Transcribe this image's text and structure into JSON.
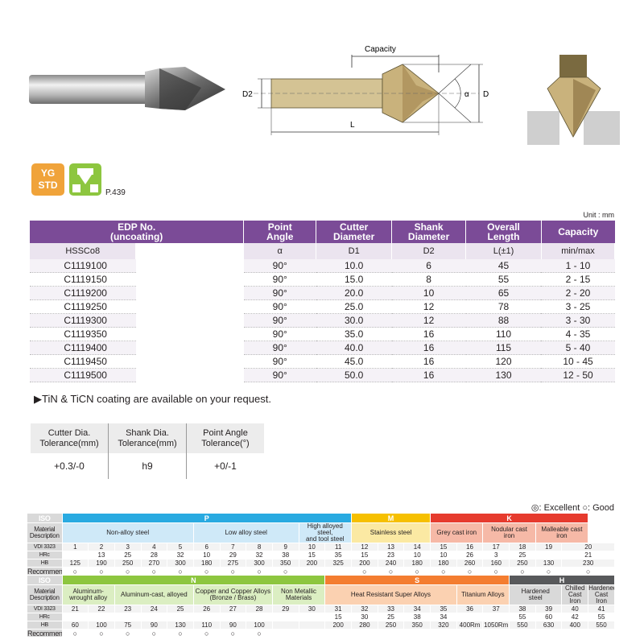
{
  "drawing": {
    "capacity_label": "Capacity",
    "d2_label": "D2",
    "alpha_label": "α",
    "d_label": "D",
    "l_label": "L"
  },
  "badges": {
    "yg_line1": "YG",
    "yg_line2": "STD",
    "page_ref": "P.439"
  },
  "unit": "Unit : mm",
  "table": {
    "headers": {
      "edp": "EDP No.\n(uncoating)",
      "angle": "Point\nAngle",
      "cutter": "Cutter\nDiameter",
      "shank": "Shank\nDiameter",
      "overall": "Overall\nLength",
      "capacity": "Capacity"
    },
    "subheaders": {
      "edp": "HSSCo8",
      "angle": "α",
      "cutter": "D1",
      "shank": "D2",
      "overall": "L(±1)",
      "capacity": "min/max"
    },
    "rows": [
      {
        "edp": "C1119100",
        "angle": "90°",
        "cutter": "10.0",
        "shank": "6",
        "overall": "45",
        "capacity": "1 - 10"
      },
      {
        "edp": "C1119150",
        "angle": "90°",
        "cutter": "15.0",
        "shank": "8",
        "overall": "55",
        "capacity": "2 - 15"
      },
      {
        "edp": "C1119200",
        "angle": "90°",
        "cutter": "20.0",
        "shank": "10",
        "overall": "65",
        "capacity": "2 - 20"
      },
      {
        "edp": "C1119250",
        "angle": "90°",
        "cutter": "25.0",
        "shank": "12",
        "overall": "78",
        "capacity": "3 - 25"
      },
      {
        "edp": "C1119300",
        "angle": "90°",
        "cutter": "30.0",
        "shank": "12",
        "overall": "88",
        "capacity": "3 - 30"
      },
      {
        "edp": "C1119350",
        "angle": "90°",
        "cutter": "35.0",
        "shank": "16",
        "overall": "110",
        "capacity": "4 - 35"
      },
      {
        "edp": "C1119400",
        "angle": "90°",
        "cutter": "40.0",
        "shank": "16",
        "overall": "115",
        "capacity": "5 - 40"
      },
      {
        "edp": "C1119450",
        "angle": "90°",
        "cutter": "45.0",
        "shank": "16",
        "overall": "120",
        "capacity": "10 - 45"
      },
      {
        "edp": "C1119500",
        "angle": "90°",
        "cutter": "50.0",
        "shank": "16",
        "overall": "130",
        "capacity": "12 - 50"
      }
    ]
  },
  "note": "▶TiN & TiCN coating are available on your request.",
  "tolerance": {
    "headers": [
      "Cutter Dia.\nTolerance(mm)",
      "Shank Dia.\nTolerance(mm)",
      "Point Angle\nTolerance(°)"
    ],
    "values": [
      "+0.3/-0",
      "h9",
      "+0/-1"
    ]
  },
  "legend": "◎: Excellent  ○: Good",
  "iso": {
    "labels": {
      "iso": "ISO",
      "material": "Material\nDescription",
      "vdi": "VDI 3323",
      "hrc": "HRc",
      "hb": "HB",
      "recommended": "Recommended"
    },
    "top": {
      "cat_p": "P",
      "cat_m": "M",
      "cat_k": "K",
      "desc_nonalloy": "Non-alloy steel",
      "desc_lowalloy": "Low alloy steel",
      "desc_highalloy": "High alloyed steel,\nand tool steel",
      "desc_stainless": "Stainless steel",
      "desc_grey": "Grey cast iron",
      "desc_nodular": "Nodular cast\niron",
      "desc_malleable": "Malleable cast\niron",
      "vdi": [
        "1",
        "2",
        "3",
        "4",
        "5",
        "6",
        "7",
        "8",
        "9",
        "10",
        "11",
        "12",
        "13",
        "14",
        "15",
        "16",
        "17",
        "18",
        "19",
        "20"
      ],
      "hrc": [
        "",
        "13",
        "25",
        "28",
        "32",
        "10",
        "29",
        "32",
        "38",
        "15",
        "35",
        "15",
        "23",
        "10",
        "10",
        "26",
        "3",
        "25",
        "",
        "21"
      ],
      "hb": [
        "125",
        "190",
        "250",
        "270",
        "300",
        "180",
        "275",
        "300",
        "350",
        "200",
        "325",
        "200",
        "240",
        "180",
        "180",
        "260",
        "160",
        "250",
        "130",
        "230"
      ],
      "rec": [
        "○",
        "○",
        "○",
        "○",
        "○",
        "○",
        "○",
        "○",
        "○",
        "",
        "",
        "○",
        "○",
        "○",
        "○",
        "○",
        "○",
        "○",
        "○",
        "○"
      ]
    },
    "bottom": {
      "cat_n": "N",
      "cat_s": "S",
      "cat_h": "H",
      "desc_wrought": "Aluminum-\nwrought alloy",
      "desc_alcast": "Aluminum-cast, alloyed",
      "desc_copper": "Copper and Copper Alloys\n(Bronze / Brass)",
      "desc_nonmetal": "Non Metallic\nMaterials",
      "desc_heat": "Heat Resistant Super Alloys",
      "desc_titanium": "Titanium Alloys",
      "desc_hardsteel": "Hardened\nsteel",
      "desc_chilled": "Chilled\nCast Iron",
      "desc_hardcast": "Hardened\nCast Iron",
      "vdi": [
        "21",
        "22",
        "23",
        "24",
        "25",
        "26",
        "27",
        "28",
        "29",
        "30",
        "31",
        "32",
        "33",
        "34",
        "35",
        "36",
        "37",
        "38",
        "39",
        "40",
        "41"
      ],
      "hrc": [
        "",
        "",
        "",
        "",
        "",
        "",
        "",
        "",
        "",
        "",
        "15",
        "30",
        "25",
        "38",
        "34",
        "",
        "",
        "55",
        "60",
        "42",
        "55"
      ],
      "hb": [
        "60",
        "100",
        "75",
        "90",
        "130",
        "110",
        "90",
        "100",
        "",
        "",
        "200",
        "280",
        "250",
        "350",
        "320",
        "400Rm",
        "1050Rm",
        "550",
        "630",
        "400",
        "550"
      ],
      "rec": [
        "○",
        "○",
        "○",
        "○",
        "○",
        "○",
        "○",
        "○",
        "",
        "",
        "",
        "",
        "",
        "",
        "",
        "",
        "",
        "",
        "",
        "",
        ""
      ]
    }
  }
}
